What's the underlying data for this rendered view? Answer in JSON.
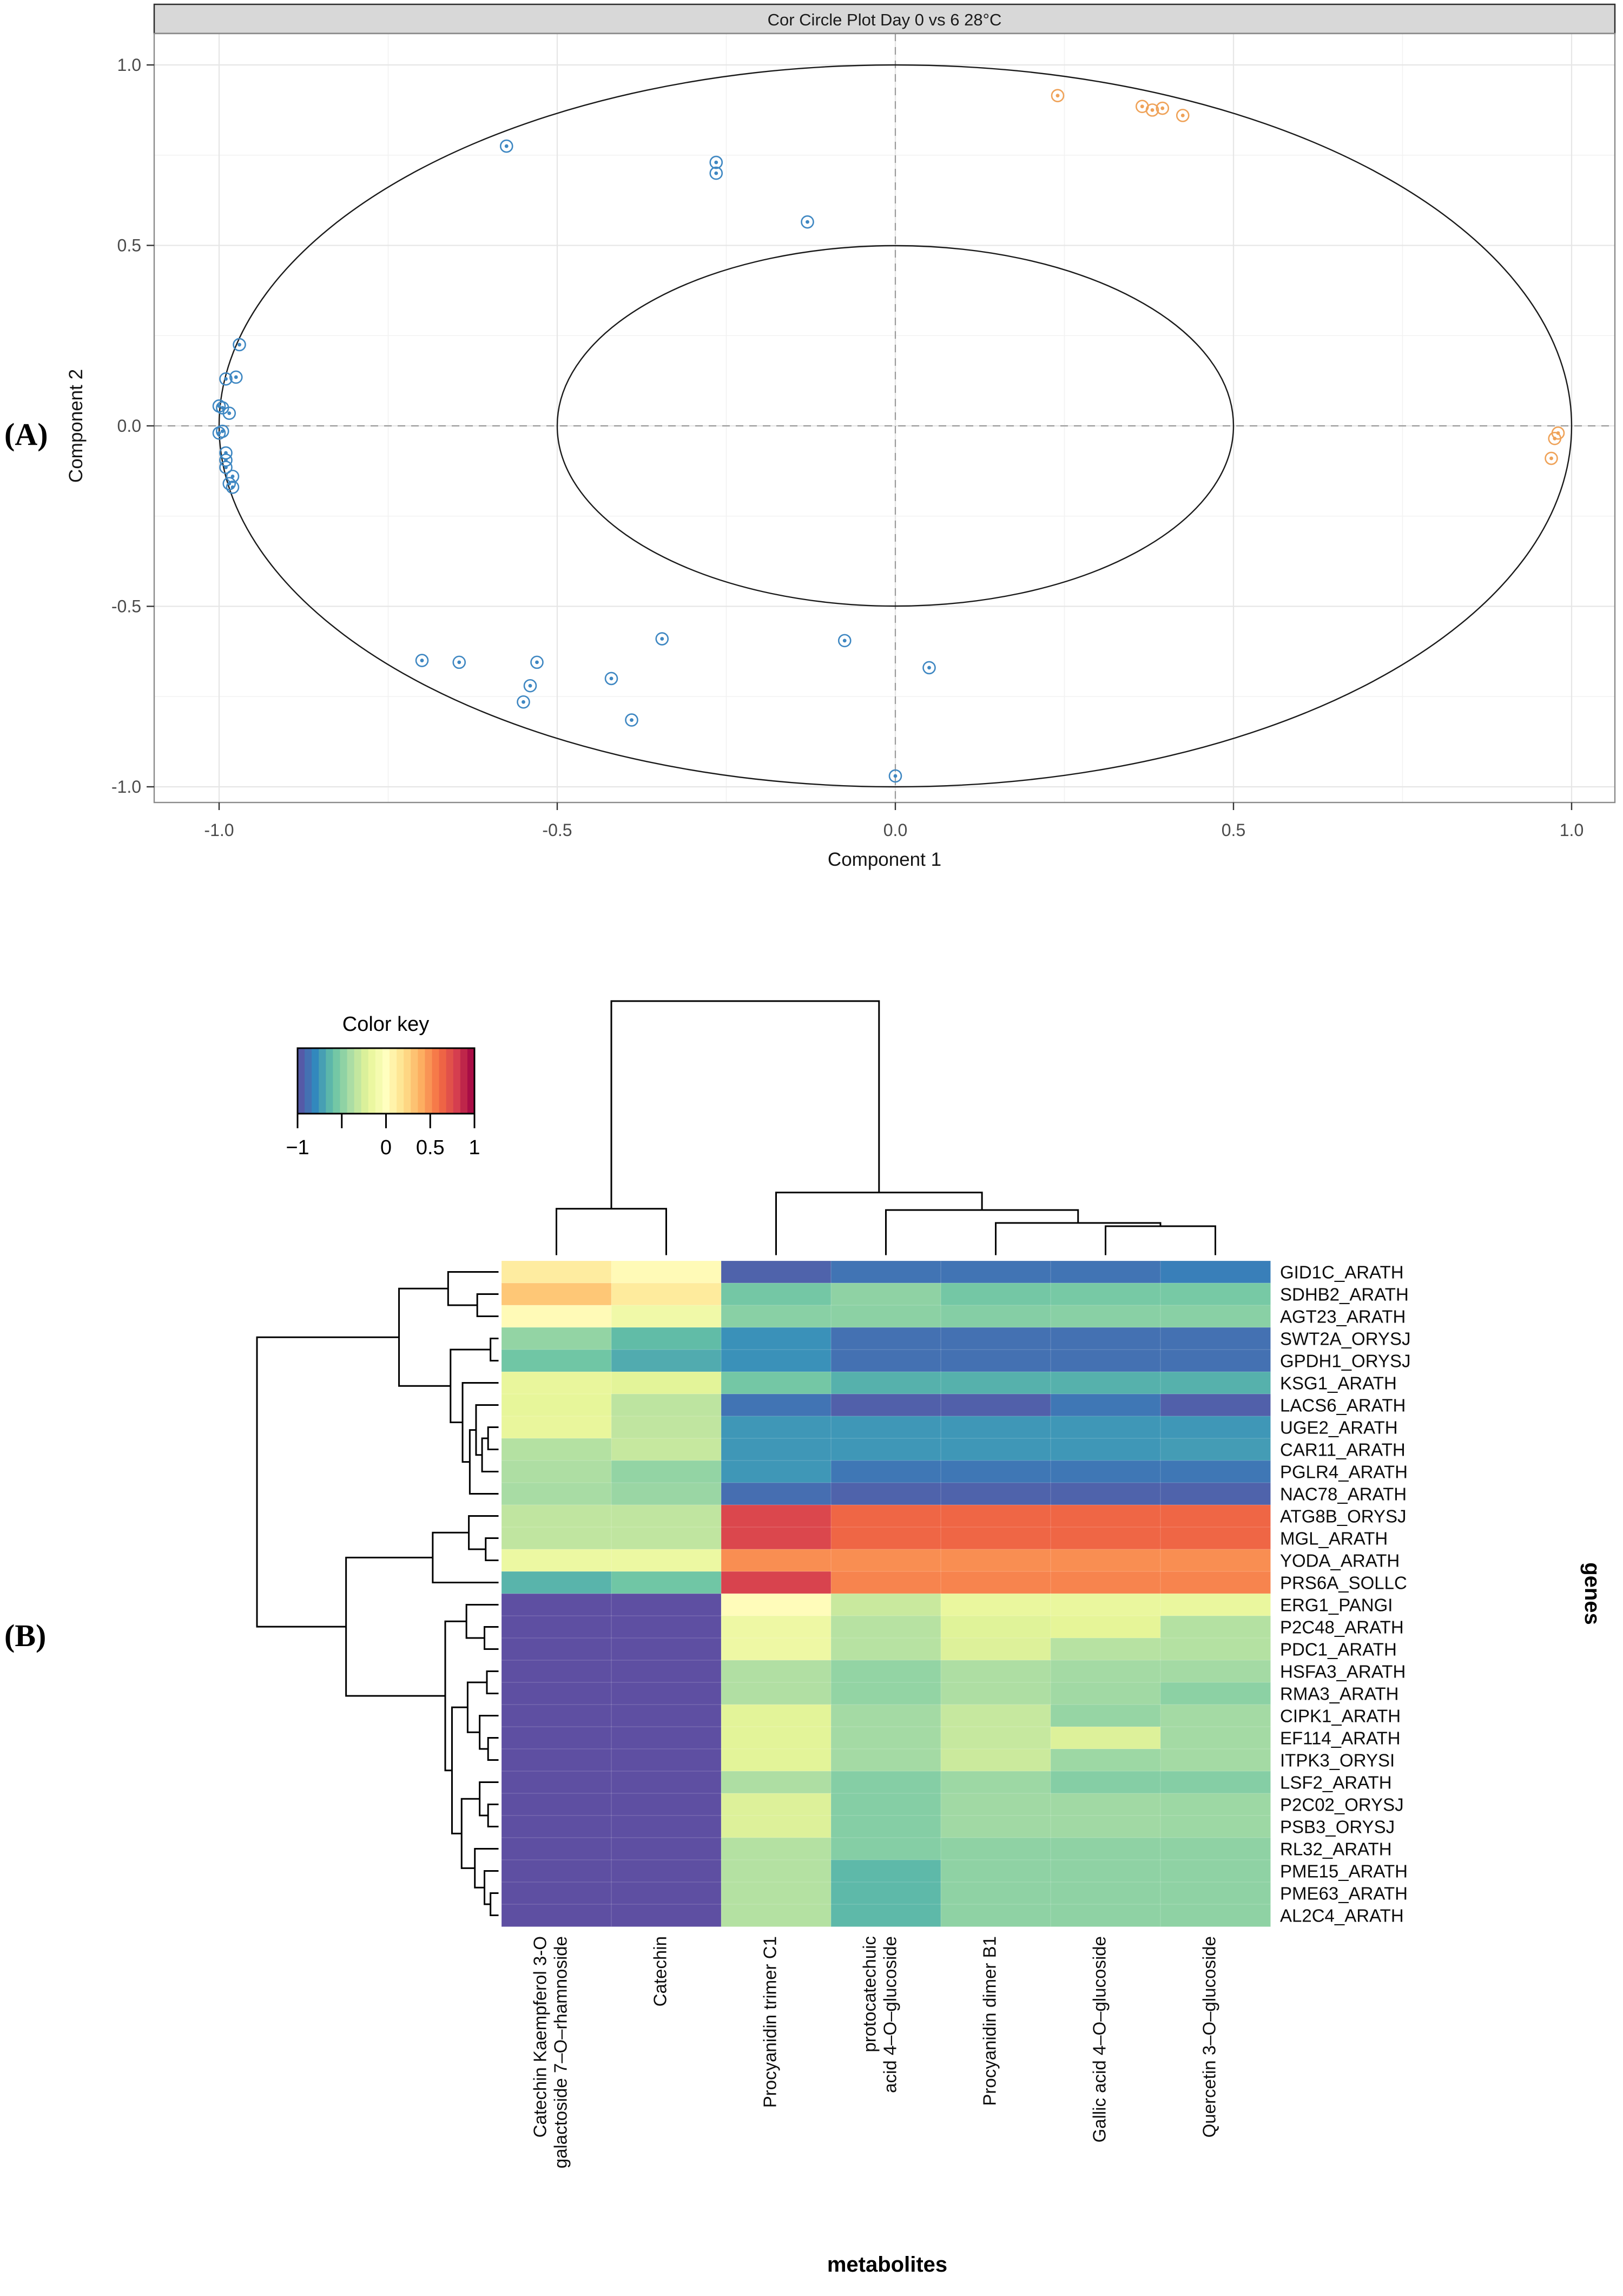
{
  "figure": {
    "panel_a_label": "(A)",
    "panel_b_label": "(B)"
  },
  "chart_data": [
    {
      "type": "scatter",
      "id": "cor-circle-plot",
      "title": "Cor Circle Plot Day 0 vs 6 28°C",
      "xlabel": "Component  1",
      "ylabel": "Component 2",
      "xlim": [
        -1.08,
        1.06
      ],
      "ylim": [
        -1.04,
        1.09
      ],
      "xticks": [
        -1.0,
        -0.5,
        0.0,
        0.5,
        1.0
      ],
      "xtick_labels": [
        "-1.0",
        "-0.5",
        "0.0",
        "0.5",
        "1.0"
      ],
      "yticks": [
        1.0,
        0.5,
        0.0,
        -0.5,
        -1.0
      ],
      "ytick_labels": [
        "1.0",
        "0.5",
        "0.0",
        "-0.5",
        "-1.0"
      ],
      "minor_ticks": [
        -0.75,
        -0.25,
        0.25,
        0.75
      ],
      "reference_circles": [
        1.0,
        0.5
      ],
      "zero_lines_dashed": true,
      "legend_position": "none",
      "grid": true,
      "series": [
        {
          "name": "negatively-correlated-variables",
          "color": "#3e87c2",
          "points": [
            [
              -0.97,
              0.225
            ],
            [
              -0.99,
              0.13
            ],
            [
              -0.975,
              0.135
            ],
            [
              -1.0,
              0.055
            ],
            [
              -0.995,
              0.05
            ],
            [
              -0.985,
              0.035
            ],
            [
              -1.0,
              -0.02
            ],
            [
              -0.995,
              -0.015
            ],
            [
              -0.99,
              -0.075
            ],
            [
              -0.99,
              -0.095
            ],
            [
              -0.99,
              -0.115
            ],
            [
              -0.98,
              -0.14
            ],
            [
              -0.985,
              -0.16
            ],
            [
              -0.98,
              -0.17
            ],
            [
              -0.575,
              0.775
            ],
            [
              -0.265,
              0.73
            ],
            [
              -0.265,
              0.7
            ],
            [
              -0.13,
              0.565
            ],
            [
              -0.7,
              -0.65
            ],
            [
              -0.645,
              -0.655
            ],
            [
              -0.53,
              -0.655
            ],
            [
              -0.54,
              -0.72
            ],
            [
              -0.55,
              -0.765
            ],
            [
              -0.42,
              -0.7
            ],
            [
              -0.39,
              -0.815
            ],
            [
              -0.345,
              -0.59
            ],
            [
              -0.075,
              -0.595
            ],
            [
              0.05,
              -0.67
            ],
            [
              0.0,
              -0.97
            ]
          ]
        },
        {
          "name": "positively-correlated-variables",
          "color": "#efa258",
          "points": [
            [
              0.24,
              0.915
            ],
            [
              0.365,
              0.885
            ],
            [
              0.38,
              0.875
            ],
            [
              0.395,
              0.88
            ],
            [
              0.425,
              0.86
            ],
            [
              0.98,
              -0.02
            ],
            [
              0.975,
              -0.035
            ],
            [
              0.97,
              -0.09
            ]
          ]
        }
      ]
    },
    {
      "type": "heatmap",
      "id": "gene-metabolite-correlation-heatmap",
      "xlabel": "metabolites",
      "ylabel": "genes",
      "color_key": {
        "title": "Color key",
        "domain": [
          -1,
          1
        ],
        "ticks": [
          -1,
          -0.5,
          0,
          0.5,
          1
        ],
        "tick_labels": [
          "−1",
          "",
          "0",
          "0.5",
          "1"
        ]
      },
      "colormap": {
        "name": "spectral-reversed",
        "anchors": [
          [
            -1.0,
            "#5e4fa2"
          ],
          [
            -0.8,
            "#3288bd"
          ],
          [
            -0.6,
            "#66c2a5"
          ],
          [
            -0.4,
            "#abdda4"
          ],
          [
            -0.2,
            "#e6f598"
          ],
          [
            0.0,
            "#ffffbf"
          ],
          [
            0.2,
            "#fee08b"
          ],
          [
            0.4,
            "#fdae61"
          ],
          [
            0.6,
            "#f46d43"
          ],
          [
            0.8,
            "#d53e4f"
          ],
          [
            1.0,
            "#9e0142"
          ]
        ]
      },
      "columns": [
        "Catechin Kaempferol 3-O\ngalactoside 7–O–rhamnoside",
        "Catechin",
        "Procyanidin trimer C1",
        "protocatechuic\nacid 4–O–glucoside",
        "Procyanidin dimer B1",
        "Gallic acid 4–O–glucoside",
        "Quercetin 3–O–glucoside"
      ],
      "rows": [
        "GID1C_ARATH",
        "SDHB2_ARATH",
        "AGT23_ARATH",
        "SWT2A_ORYSJ",
        "GPDH1_ORYSJ",
        "KSG1_ARATH",
        "LACS6_ARATH",
        "UGE2_ARATH",
        "CAR11_ARATH",
        "PGLR4_ARATH",
        "NAC78_ARATH",
        "ATG8B_ORYSJ",
        "MGL_ARATH",
        "YODA_ARATH",
        "PRS6A_SOLLC",
        "ERG1_PANGI",
        "P2C48_ARATH",
        "PDC1_ARATH",
        "HSFA3_ARATH",
        "RMA3_ARATH",
        "CIPK1_ARATH",
        "EF114_ARATH",
        "ITPK3_ORYSI",
        "LSF2_ARATH",
        "P2C02_ORYSJ",
        "PSB3_ORYSJ",
        "RL32_ARATH",
        "PME15_ARATH",
        "PME63_ARATH",
        "AL2C4_ARATH"
      ],
      "matrix": [
        [
          0.12,
          0.03,
          -0.93,
          -0.87,
          -0.87,
          -0.87,
          -0.83
        ],
        [
          0.3,
          0.13,
          -0.56,
          -0.48,
          -0.56,
          -0.55,
          -0.55
        ],
        [
          0.03,
          -0.12,
          -0.5,
          -0.49,
          -0.51,
          -0.5,
          -0.5
        ],
        [
          -0.47,
          -0.62,
          -0.77,
          -0.88,
          -0.88,
          -0.88,
          -0.88
        ],
        [
          -0.57,
          -0.68,
          -0.77,
          -0.88,
          -0.88,
          -0.88,
          -0.88
        ],
        [
          -0.18,
          -0.21,
          -0.56,
          -0.66,
          -0.66,
          -0.66,
          -0.66
        ],
        [
          -0.19,
          -0.34,
          -0.87,
          -0.94,
          -0.94,
          -0.86,
          -0.94
        ],
        [
          -0.18,
          -0.33,
          -0.75,
          -0.75,
          -0.75,
          -0.75,
          -0.75
        ],
        [
          -0.37,
          -0.31,
          -0.75,
          -0.75,
          -0.75,
          -0.75,
          -0.73
        ],
        [
          -0.39,
          -0.47,
          -0.75,
          -0.86,
          -0.86,
          -0.86,
          -0.86
        ],
        [
          -0.41,
          -0.45,
          -0.89,
          -0.93,
          -0.93,
          -0.93,
          -0.93
        ],
        [
          -0.33,
          -0.33,
          0.76,
          0.63,
          0.63,
          0.63,
          0.63
        ],
        [
          -0.33,
          -0.33,
          0.76,
          0.63,
          0.63,
          0.63,
          0.63
        ],
        [
          -0.15,
          -0.15,
          0.5,
          0.5,
          0.5,
          0.5,
          0.5
        ],
        [
          -0.65,
          -0.57,
          0.78,
          0.53,
          0.53,
          0.53,
          0.53
        ],
        [
          -1.0,
          -1.0,
          0.02,
          -0.3,
          -0.17,
          -0.17,
          -0.17
        ],
        [
          -1.0,
          -1.0,
          -0.14,
          -0.36,
          -0.22,
          -0.2,
          -0.37
        ],
        [
          -1.0,
          -1.0,
          -0.14,
          -0.36,
          -0.23,
          -0.36,
          -0.37
        ],
        [
          -1.0,
          -1.0,
          -0.38,
          -0.47,
          -0.39,
          -0.42,
          -0.42
        ],
        [
          -1.0,
          -1.0,
          -0.38,
          -0.47,
          -0.39,
          -0.43,
          -0.49
        ],
        [
          -1.0,
          -1.0,
          -0.21,
          -0.42,
          -0.31,
          -0.46,
          -0.42
        ],
        [
          -1.0,
          -1.0,
          -0.21,
          -0.42,
          -0.31,
          -0.23,
          -0.42
        ],
        [
          -1.0,
          -1.0,
          -0.21,
          -0.42,
          -0.29,
          -0.44,
          -0.42
        ],
        [
          -1.0,
          -1.0,
          -0.39,
          -0.51,
          -0.44,
          -0.51,
          -0.51
        ],
        [
          -1.0,
          -1.0,
          -0.23,
          -0.51,
          -0.43,
          -0.43,
          -0.44
        ],
        [
          -1.0,
          -1.0,
          -0.23,
          -0.51,
          -0.43,
          -0.43,
          -0.44
        ],
        [
          -1.0,
          -1.0,
          -0.37,
          -0.51,
          -0.48,
          -0.48,
          -0.48
        ],
        [
          -1.0,
          -1.0,
          -0.37,
          -0.63,
          -0.48,
          -0.48,
          -0.48
        ],
        [
          -1.0,
          -1.0,
          -0.37,
          -0.63,
          -0.48,
          -0.48,
          -0.48
        ],
        [
          -1.0,
          -1.0,
          -0.37,
          -0.63,
          -0.48,
          -0.48,
          -0.48
        ]
      ],
      "col_tree": {
        "h": 1.0,
        "c": [
          {
            "h": 0.18,
            "c": [
              {
                "leaf": 0
              },
              {
                "leaf": 1
              }
            ]
          },
          {
            "h": 0.244,
            "c": [
              {
                "leaf": 2
              },
              {
                "h": 0.175,
                "c": [
                  {
                    "leaf": 3
                  },
                  {
                    "h": 0.124,
                    "c": [
                      {
                        "leaf": 4
                      },
                      {
                        "h": 0.111,
                        "c": [
                          {
                            "leaf": 5
                          },
                          {
                            "leaf": 6
                          }
                        ]
                      }
                    ]
                  }
                ]
              }
            ]
          }
        ]
      },
      "row_tree": {
        "h": 1.0,
        "c": [
          {
            "h": 0.41,
            "c": [
              {
                "h": 0.206,
                "c": [
                  {
                    "leaf": 0
                  },
                  {
                    "h": 0.085,
                    "c": [
                      {
                        "leaf": 1
                      },
                      {
                        "leaf": 2
                      }
                    ]
                  }
                ]
              },
              {
                "h": 0.196,
                "c": [
                  {
                    "h": 0.03,
                    "c": [
                      {
                        "leaf": 3
                      },
                      {
                        "leaf": 4
                      }
                    ]
                  },
                  {
                    "h": 0.146,
                    "c": [
                      {
                        "leaf": 5
                      },
                      {
                        "h": 0.116,
                        "c": [
                          {
                            "h": 0.09,
                            "c": [
                              {
                                "leaf": 6
                              },
                              {
                                "h": 0.065,
                                "c": [
                                  {
                                    "h": 0.04,
                                    "c": [
                                      {
                                        "leaf": 7
                                      },
                                      {
                                        "leaf": 8
                                      }
                                    ]
                                  },
                                  {
                                    "leaf": 9
                                  }
                                ]
                              }
                            ]
                          },
                          {
                            "leaf": 10
                          }
                        ]
                      }
                    ]
                  }
                ]
              }
            ]
          },
          {
            "h": 0.63,
            "c": [
              {
                "h": 0.27,
                "c": [
                  {
                    "h": 0.12,
                    "c": [
                      {
                        "leaf": 11
                      },
                      {
                        "h": 0.05,
                        "c": [
                          {
                            "leaf": 12
                          },
                          {
                            "leaf": 13
                          }
                        ]
                      }
                    ]
                  },
                  {
                    "leaf": 14
                  }
                ]
              },
              {
                "h": 0.218,
                "c": [
                  {
                    "h": 0.13,
                    "c": [
                      {
                        "leaf": 15
                      },
                      {
                        "h": 0.055,
                        "c": [
                          {
                            "leaf": 16
                          },
                          {
                            "leaf": 17
                          }
                        ]
                      }
                    ]
                  },
                  {
                    "h": 0.19,
                    "c": [
                      {
                        "h": 0.125,
                        "c": [
                          {
                            "h": 0.045,
                            "c": [
                              {
                                "leaf": 18
                              },
                              {
                                "leaf": 19
                              }
                            ]
                          },
                          {
                            "h": 0.075,
                            "c": [
                              {
                                "leaf": 20
                              },
                              {
                                "h": 0.04,
                                "c": [
                                  {
                                    "leaf": 21
                                  },
                                  {
                                    "leaf": 22
                                  }
                                ]
                              }
                            ]
                          }
                        ]
                      },
                      {
                        "h": 0.15,
                        "c": [
                          {
                            "h": 0.075,
                            "c": [
                              {
                                "leaf": 23
                              },
                              {
                                "h": 0.04,
                                "c": [
                                  {
                                    "leaf": 24
                                  },
                                  {
                                    "leaf": 25
                                  }
                                ]
                              }
                            ]
                          },
                          {
                            "h": 0.095,
                            "c": [
                              {
                                "leaf": 26
                              },
                              {
                                "h": 0.055,
                                "c": [
                                  {
                                    "leaf": 27
                                  },
                                  {
                                    "h": 0.03,
                                    "c": [
                                      {
                                        "leaf": 28
                                      },
                                      {
                                        "leaf": 29
                                      }
                                    ]
                                  }
                                ]
                              }
                            ]
                          }
                        ]
                      }
                    ]
                  }
                ]
              }
            ]
          }
        ]
      }
    }
  ]
}
